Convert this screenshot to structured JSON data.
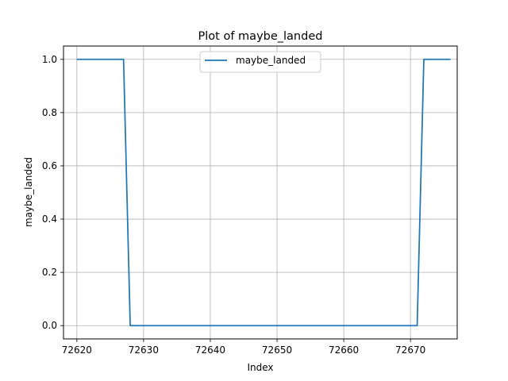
{
  "chart_data": {
    "type": "line",
    "title": "Plot of maybe_landed",
    "xlabel": "Index",
    "ylabel": "maybe_landed",
    "xlim": [
      72618,
      72677
    ],
    "ylim": [
      -0.05,
      1.05
    ],
    "x_ticks": [
      72620,
      72630,
      72640,
      72650,
      72660,
      72670
    ],
    "y_ticks": [
      0.0,
      0.2,
      0.4,
      0.6,
      0.8,
      1.0
    ],
    "y_tick_labels": [
      "0.0",
      "0.2",
      "0.4",
      "0.6",
      "0.8",
      "1.0"
    ],
    "grid": true,
    "legend_position": "top-center",
    "series": [
      {
        "name": "maybe_landed",
        "color": "#1f77b4",
        "x": [
          72620,
          72621,
          72622,
          72623,
          72624,
          72625,
          72626,
          72627,
          72628,
          72629,
          72630,
          72631,
          72632,
          72633,
          72634,
          72635,
          72636,
          72637,
          72638,
          72639,
          72640,
          72641,
          72642,
          72643,
          72644,
          72645,
          72646,
          72647,
          72648,
          72649,
          72650,
          72651,
          72652,
          72653,
          72654,
          72655,
          72656,
          72657,
          72658,
          72659,
          72660,
          72661,
          72662,
          72663,
          72664,
          72665,
          72666,
          72667,
          72668,
          72669,
          72670,
          72671,
          72672,
          72673,
          72674,
          72675,
          72676
        ],
        "values": [
          1,
          1,
          1,
          1,
          1,
          1,
          1,
          1,
          0,
          0,
          0,
          0,
          0,
          0,
          0,
          0,
          0,
          0,
          0,
          0,
          0,
          0,
          0,
          0,
          0,
          0,
          0,
          0,
          0,
          0,
          0,
          0,
          0,
          0,
          0,
          0,
          0,
          0,
          0,
          0,
          0,
          0,
          0,
          0,
          0,
          0,
          0,
          0,
          0,
          0,
          0,
          0,
          1,
          1,
          1,
          1,
          1
        ]
      }
    ]
  }
}
